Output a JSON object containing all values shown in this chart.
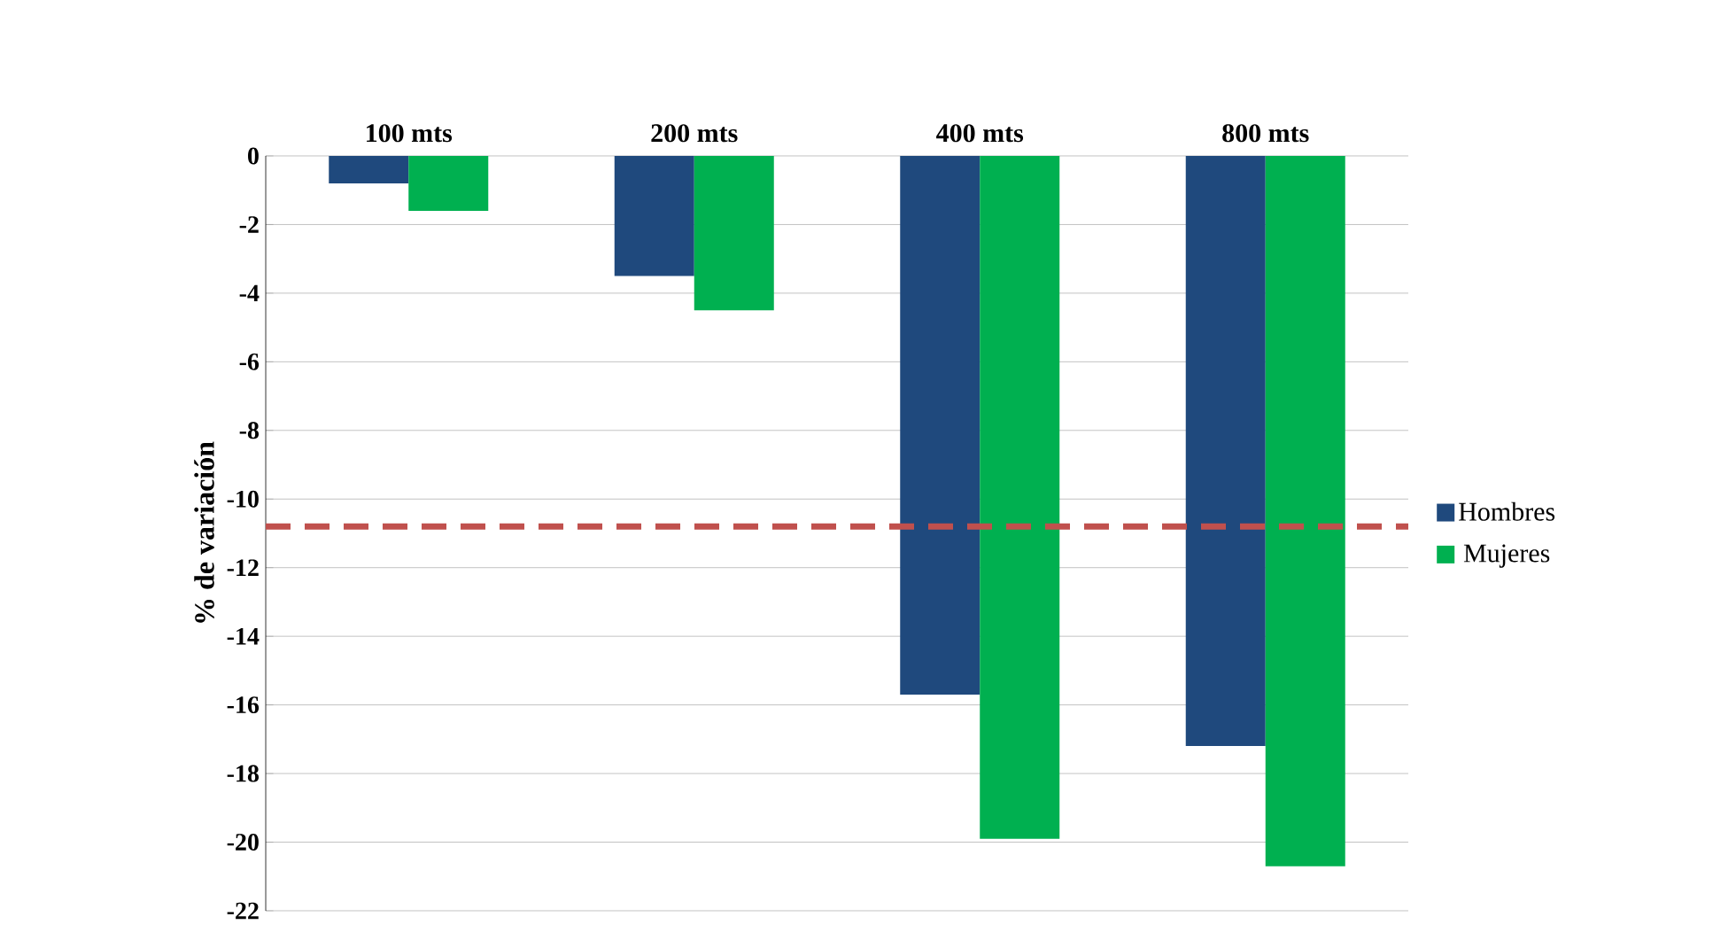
{
  "chart_data": {
    "type": "bar",
    "ylabel": "% de variación",
    "categories": [
      "100 mts",
      "200 mts",
      "400 mts",
      "800 mts"
    ],
    "series": [
      {
        "name": "Hombres",
        "color": "#1f497d",
        "values": [
          -0.8,
          -3.5,
          -15.7,
          -17.2
        ]
      },
      {
        "name": "Mujeres",
        "color": "#00b050",
        "values": [
          -1.6,
          -4.5,
          -19.9,
          -20.7
        ]
      }
    ],
    "ylim": [
      -22,
      0
    ],
    "yticks": [
      -22,
      -20,
      -18,
      -16,
      -14,
      -12,
      -10,
      -8,
      -6,
      -4,
      -2,
      0
    ],
    "grid": "y",
    "legend": "right",
    "ref_lines": [
      {
        "axis": "y",
        "value": -10.8,
        "color": "#c0504d",
        "line_style": "dashed"
      }
    ]
  }
}
